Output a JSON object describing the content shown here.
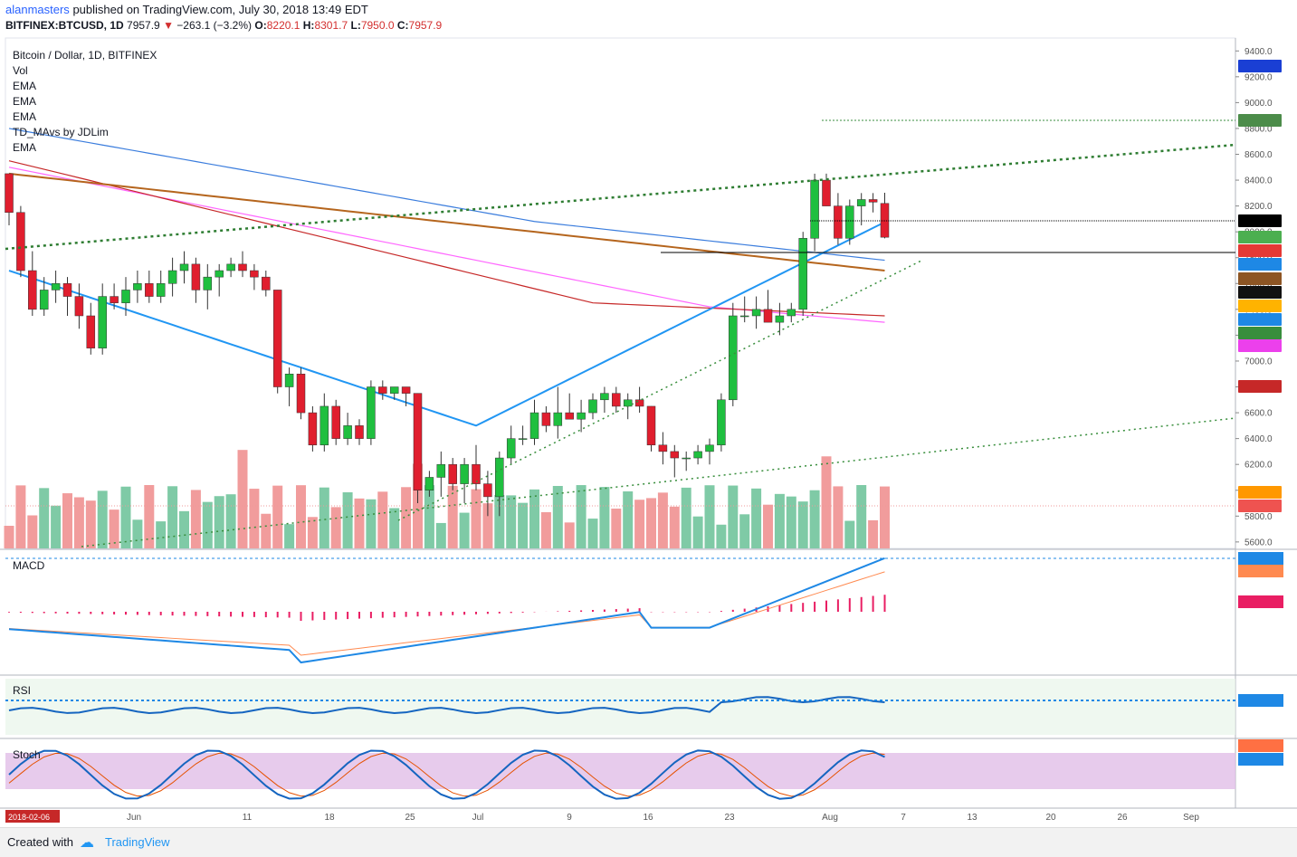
{
  "header": {
    "author": "alanmasters",
    "published": "published on TradingView.com, July 30, 2018 13:49 EDT",
    "symbol": "BITFINEX:BTCUSD, 1D",
    "last": "7957.9",
    "change": "−263.1 (−3.2%)",
    "o_label": "O:",
    "o": "8220.1",
    "h_label": "H:",
    "h": "8301.7",
    "l_label": "L:",
    "l": "7950.0",
    "c_label": "C:",
    "c": "7957.9"
  },
  "legend": [
    "Bitcoin / Dollar, 1D, BITFINEX",
    "Vol",
    "EMA",
    "EMA",
    "EMA",
    "TD_MAvs by JDLim",
    "EMA"
  ],
  "pane_labels": {
    "macd": "MACD",
    "rsi": "RSI",
    "stoch": "Stoch"
  },
  "footer": {
    "created_with": "Created with",
    "brand": "TradingView"
  },
  "colors": {
    "up": "#26a69a",
    "down": "#ef5350",
    "up_candle": "#1fbf3f",
    "down_candle": "#e01e2e"
  },
  "chart_data": {
    "type": "candlestick",
    "x_labels": [
      "Jun",
      "11",
      "18",
      "25",
      "Jul",
      "9",
      "16",
      "23",
      "Aug",
      "7",
      "13",
      "20",
      "26",
      "Sep"
    ],
    "start_date": "2018-02-06",
    "y_ticks": [
      "9400.0",
      "9200.0",
      "9000.0",
      "8800.0",
      "8600.0",
      "8400.0",
      "8200.0",
      "8000.0",
      "7800.0",
      "7600.0",
      "7400.0",
      "7200.0",
      "7000.0",
      "6800.0",
      "6600.0",
      "6400.0",
      "6200.0",
      "6000.0",
      "5800.0",
      "5600.0"
    ],
    "ylim": [
      5550,
      9500
    ],
    "candles": [
      [
        8450,
        8450,
        8050,
        8150
      ],
      [
        8150,
        8200,
        7650,
        7700
      ],
      [
        7700,
        7850,
        7350,
        7400
      ],
      [
        7400,
        7650,
        7350,
        7550
      ],
      [
        7550,
        7700,
        7450,
        7600
      ],
      [
        7600,
        7650,
        7350,
        7500
      ],
      [
        7500,
        7600,
        7250,
        7350
      ],
      [
        7350,
        7450,
        7050,
        7100
      ],
      [
        7100,
        7600,
        7050,
        7500
      ],
      [
        7500,
        7600,
        7400,
        7450
      ],
      [
        7450,
        7650,
        7350,
        7550
      ],
      [
        7550,
        7700,
        7450,
        7600
      ],
      [
        7600,
        7700,
        7450,
        7500
      ],
      [
        7500,
        7700,
        7450,
        7600
      ],
      [
        7600,
        7800,
        7500,
        7700
      ],
      [
        7700,
        7850,
        7600,
        7750
      ],
      [
        7750,
        7800,
        7450,
        7550
      ],
      [
        7550,
        7750,
        7400,
        7650
      ],
      [
        7650,
        7750,
        7500,
        7700
      ],
      [
        7700,
        7800,
        7650,
        7750
      ],
      [
        7750,
        7850,
        7650,
        7700
      ],
      [
        7700,
        7750,
        7550,
        7650
      ],
      [
        7650,
        7700,
        7500,
        7550
      ],
      [
        7550,
        7550,
        6750,
        6800
      ],
      [
        6800,
        6950,
        6650,
        6900
      ],
      [
        6900,
        6950,
        6550,
        6600
      ],
      [
        6600,
        6650,
        6300,
        6350
      ],
      [
        6350,
        6750,
        6300,
        6650
      ],
      [
        6650,
        6700,
        6350,
        6400
      ],
      [
        6400,
        6600,
        6350,
        6500
      ],
      [
        6500,
        6550,
        6350,
        6400
      ],
      [
        6400,
        6850,
        6350,
        6800
      ],
      [
        6800,
        6850,
        6700,
        6750
      ],
      [
        6750,
        6800,
        6700,
        6800
      ],
      [
        6800,
        6800,
        6650,
        6750
      ],
      [
        6750,
        6750,
        5900,
        6000
      ],
      [
        6000,
        6150,
        5950,
        6100
      ],
      [
        6100,
        6300,
        5950,
        6200
      ],
      [
        6200,
        6250,
        6000,
        6050
      ],
      [
        6050,
        6250,
        5900,
        6200
      ],
      [
        6200,
        6350,
        6000,
        6050
      ],
      [
        6050,
        6150,
        5800,
        5950
      ],
      [
        5950,
        6300,
        5800,
        6250
      ],
      [
        6250,
        6500,
        6200,
        6400
      ],
      [
        6400,
        6500,
        6350,
        6400
      ],
      [
        6400,
        6700,
        6350,
        6600
      ],
      [
        6600,
        6650,
        6450,
        6500
      ],
      [
        6500,
        6800,
        6400,
        6600
      ],
      [
        6600,
        6750,
        6550,
        6550
      ],
      [
        6550,
        6700,
        6450,
        6600
      ],
      [
        6600,
        6750,
        6550,
        6700
      ],
      [
        6700,
        6800,
        6600,
        6750
      ],
      [
        6750,
        6800,
        6600,
        6650
      ],
      [
        6650,
        6750,
        6550,
        6700
      ],
      [
        6700,
        6800,
        6600,
        6650
      ],
      [
        6650,
        6650,
        6300,
        6350
      ],
      [
        6350,
        6450,
        6200,
        6300
      ],
      [
        6300,
        6350,
        6100,
        6250
      ],
      [
        6250,
        6300,
        6150,
        6250
      ],
      [
        6250,
        6350,
        6200,
        6300
      ],
      [
        6300,
        6400,
        6200,
        6350
      ],
      [
        6350,
        6750,
        6300,
        6700
      ],
      [
        6700,
        7450,
        6650,
        7350
      ],
      [
        7350,
        7500,
        7300,
        7350
      ],
      [
        7350,
        7500,
        7250,
        7400
      ],
      [
        7400,
        7550,
        7300,
        7300
      ],
      [
        7300,
        7450,
        7200,
        7350
      ],
      [
        7350,
        7450,
        7300,
        7400
      ],
      [
        7400,
        8000,
        7350,
        7950
      ],
      [
        7950,
        8450,
        7850,
        8400
      ],
      [
        8400,
        8450,
        8200,
        8200
      ],
      [
        8200,
        8300,
        7900,
        7950
      ],
      [
        7950,
        8250,
        7900,
        8200
      ],
      [
        8200,
        8300,
        8050,
        8250
      ],
      [
        8250,
        8300,
        8150,
        8230
      ],
      [
        8220,
        8302,
        7950,
        7958
      ]
    ]
  }
}
